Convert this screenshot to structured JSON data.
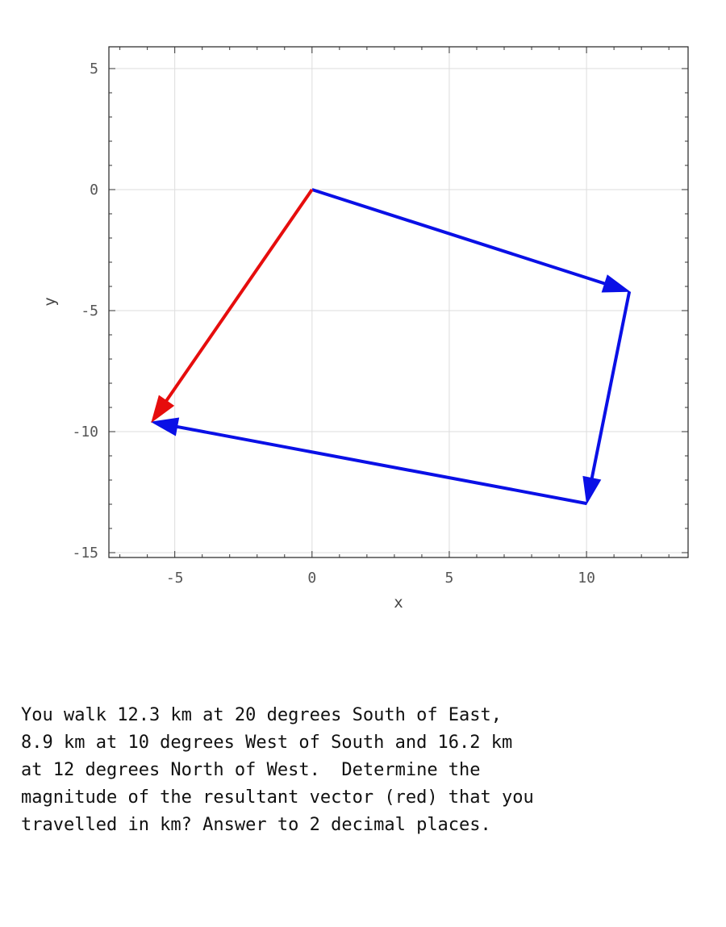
{
  "chart_data": {
    "type": "vector",
    "title": "",
    "xlabel": "x",
    "ylabel": "y",
    "xlim": [
      -7.4,
      13.7
    ],
    "ylim": [
      -15.2,
      5.9
    ],
    "xticks": [
      -5,
      0,
      5,
      10
    ],
    "yticks": [
      5,
      0,
      -5,
      -10,
      -15
    ],
    "xtick_labels": [
      "-5",
      "0",
      "5",
      "10"
    ],
    "ytick_labels": [
      "5",
      "0",
      "-5",
      "-10",
      "-15"
    ],
    "grid": true,
    "vectors": [
      {
        "from": [
          0,
          0
        ],
        "to": [
          11.56,
          -4.21
        ],
        "color": "#0a10e6"
      },
      {
        "from": [
          11.56,
          -4.21
        ],
        "to": [
          10.01,
          -12.97
        ],
        "color": "#0a10e6"
      },
      {
        "from": [
          10.01,
          -12.97
        ],
        "to": [
          -5.84,
          -9.6
        ],
        "color": "#0a10e6"
      },
      {
        "from": [
          0,
          0
        ],
        "to": [
          -5.84,
          -9.6
        ],
        "color": "#e60d0d"
      }
    ]
  },
  "question": {
    "lines": [
      "You walk 12.3 km at 20 degrees South of East,",
      "8.9 km at 10 degrees West of South and 16.2 km",
      "at 12 degrees North of West.  Determine the",
      "magnitude of the resultant vector (red) that you",
      "travelled in km? Answer to 2 decimal places."
    ]
  }
}
